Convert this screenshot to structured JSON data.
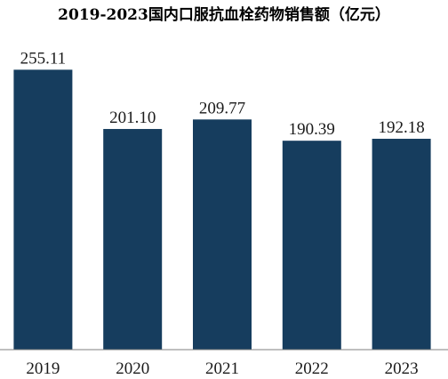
{
  "chart_data": {
    "type": "bar",
    "title": "2019-2023国内口服抗血栓药物销售额（亿元）",
    "categories": [
      "2019",
      "2020",
      "2021",
      "2022",
      "2023"
    ],
    "values": [
      255.11,
      201.1,
      209.77,
      190.39,
      192.18
    ],
    "data_labels": [
      "255.11",
      "201.10",
      "209.77",
      "190.39",
      "192.18"
    ],
    "ylim": [
      0,
      270
    ],
    "bar_color": "#163D5E",
    "grid": false,
    "legend": "none"
  }
}
